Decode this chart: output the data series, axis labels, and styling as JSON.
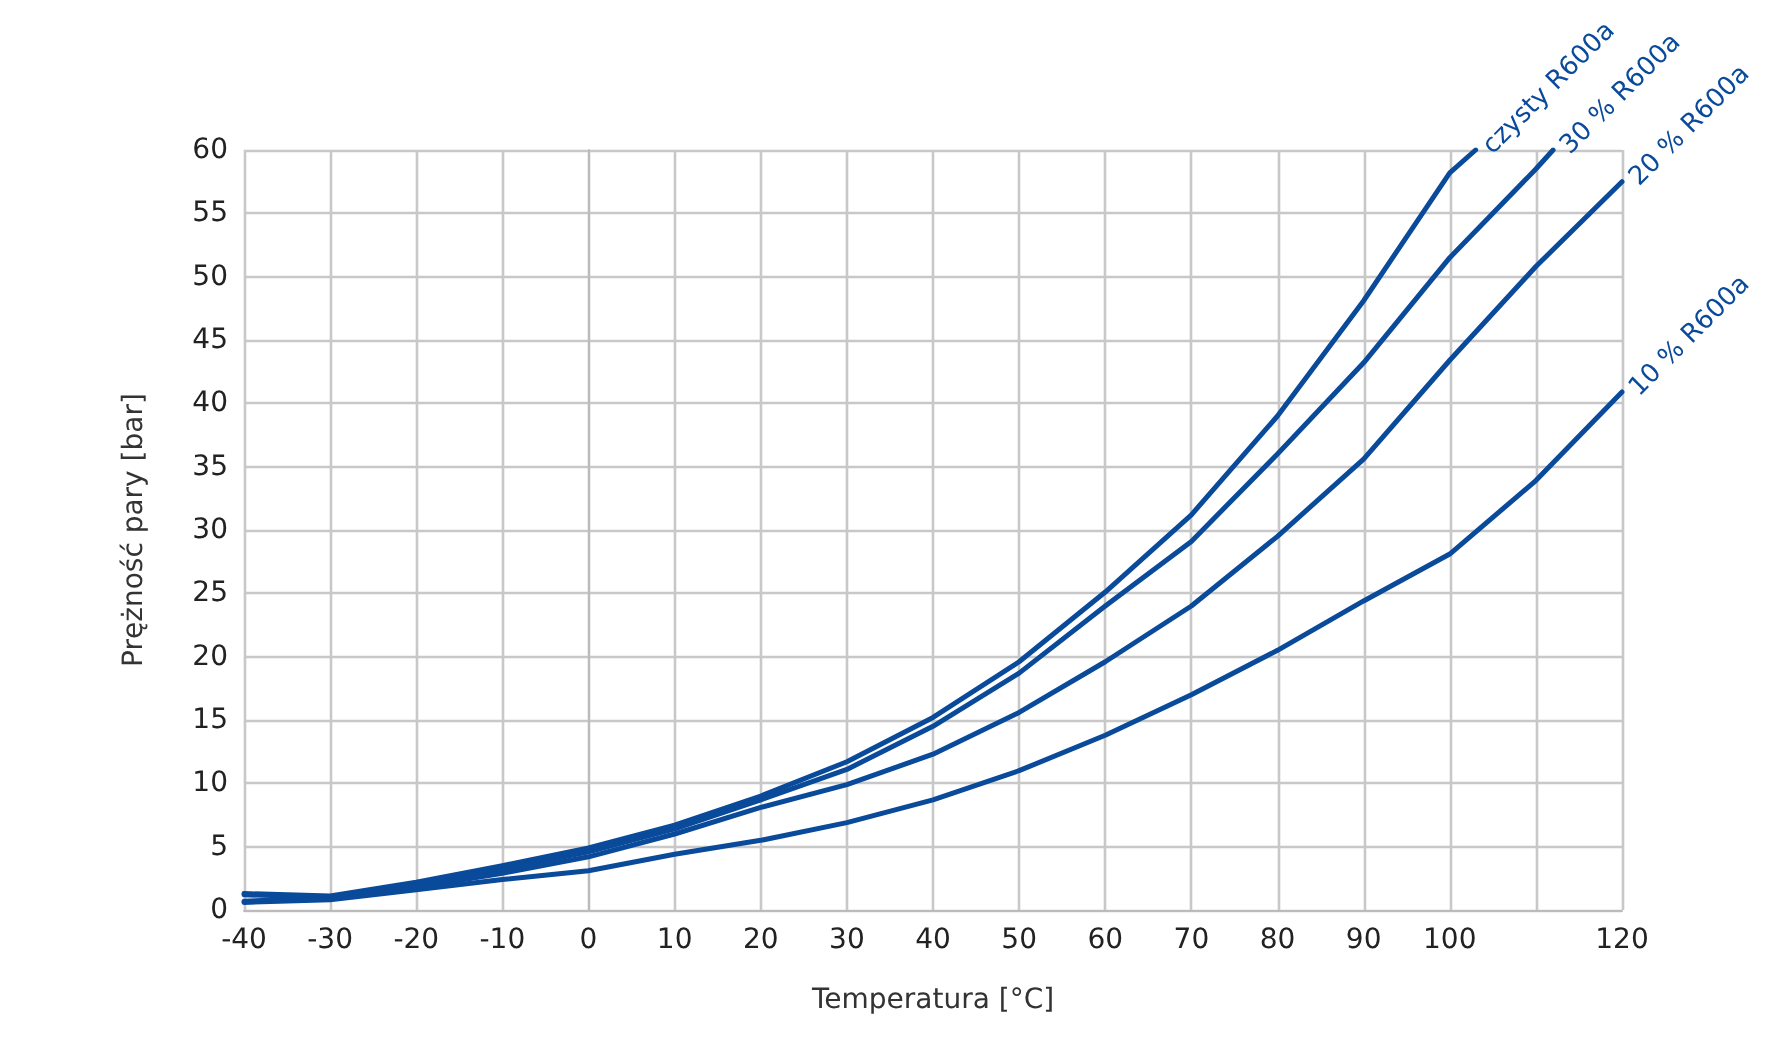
{
  "chart_data": {
    "type": "line",
    "xlabel": "Temperatura [°C]",
    "ylabel": "Prężność pary [bar]",
    "xlim": [
      -40,
      120
    ],
    "xticks": [
      -40,
      -30,
      -20,
      -10,
      0,
      10,
      20,
      30,
      40,
      50,
      60,
      70,
      80,
      90,
      100,
      {
        "value": 110,
        "label": null
      },
      120
    ],
    "ylim": [
      0,
      60
    ],
    "yticks": [
      0,
      5,
      10,
      15,
      20,
      25,
      30,
      35,
      40,
      45,
      50,
      55,
      60
    ],
    "grid": true,
    "legend": false,
    "marker": "none",
    "line_style": "solid",
    "series": [
      {
        "name": "czysty R600a",
        "color": "#0a4a9a",
        "x": [
          -40,
          -30,
          -20,
          -10,
          0,
          10,
          20,
          30,
          40,
          50,
          60,
          70,
          80,
          90,
          100,
          103
        ],
        "values": [
          1.3,
          1.1,
          2.2,
          3.5,
          4.9,
          6.7,
          9.0,
          11.7,
          15.2,
          19.6,
          25.1,
          31.2,
          39.0,
          48.1,
          58.2,
          60
        ]
      },
      {
        "name": "30 % R600a",
        "color": "#0a4a9a",
        "x": [
          -40,
          -30,
          -20,
          -10,
          0,
          10,
          20,
          30,
          40,
          50,
          60,
          70,
          80,
          90,
          100,
          110,
          112
        ],
        "values": [
          1.2,
          1.0,
          2.0,
          3.2,
          4.6,
          6.4,
          8.7,
          11.1,
          14.5,
          18.7,
          24.0,
          29.1,
          36.0,
          43.2,
          51.5,
          58.5,
          60
        ]
      },
      {
        "name": "20 % R600a",
        "color": "#0a4a9a",
        "x": [
          -40,
          -30,
          -20,
          -10,
          0,
          10,
          20,
          30,
          40,
          50,
          60,
          70,
          80,
          90,
          100,
          110,
          120
        ],
        "values": [
          0.7,
          0.9,
          1.8,
          2.9,
          4.2,
          6.0,
          8.1,
          9.9,
          12.3,
          15.6,
          19.6,
          24.0,
          29.5,
          35.6,
          43.4,
          50.8,
          57.5
        ]
      },
      {
        "name": "10 % R600a",
        "color": "#0a4a9a",
        "x": [
          -40,
          -30,
          -20,
          -10,
          0,
          10,
          20,
          30,
          40,
          50,
          60,
          70,
          80,
          90,
          100,
          110,
          120
        ],
        "values": [
          0.6,
          0.8,
          1.6,
          2.4,
          3.1,
          4.4,
          5.5,
          6.9,
          8.7,
          11.0,
          13.8,
          17.0,
          20.5,
          24.4,
          28.1,
          33.9,
          40.9
        ]
      }
    ]
  }
}
